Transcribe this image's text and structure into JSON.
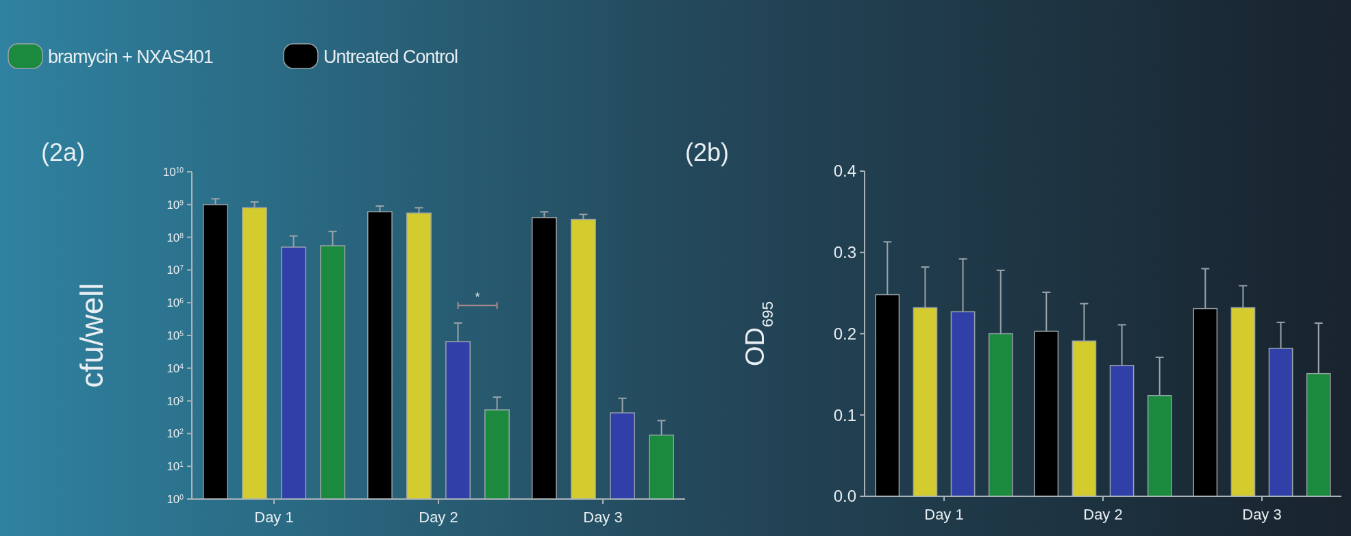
{
  "chart_data": [
    {
      "type": "bar",
      "ylabel": "cfu/well",
      "categories": [
        "Day 1",
        "Day 2",
        "Day 3"
      ],
      "log": true,
      "legend": "top",
      "ylim": [
        1,
        10000000000
      ],
      "yticks": [
        {
          "value": 1,
          "label": "10$^{0}$"
        },
        {
          "value": 10,
          "label": "10$^{1}$"
        },
        {
          "value": 100,
          "label": "10$^{2}$"
        },
        {
          "value": 1000,
          "label": "10$^{3}$"
        },
        {
          "value": 10000,
          "label": "10$^{4}$"
        },
        {
          "value": 100000,
          "label": "10$^{5}$"
        },
        {
          "value": 1000000,
          "label": "10$^{6}$"
        },
        {
          "value": 10000000,
          "label": "10$^{7}$"
        },
        {
          "value": 100000000,
          "label": "10$^{8}$"
        },
        {
          "value": 1000000000,
          "label": "10$^{9}$"
        },
        {
          "value": 10000000000,
          "label": "10$^{10}$"
        }
      ],
      "series": [
        {
          "name": "Untreated Control",
          "color": "#000000",
          "values": [
            1000000000,
            600000000,
            400000000
          ],
          "errors": [
            [
              1000000000,
              1500000000
            ],
            [
              600000000,
              900000000
            ],
            [
              400000000,
              600000000
            ]
          ]
        },
        {
          "color": "#d4cc2e",
          "values": [
            800000000,
            550000000,
            350000000
          ],
          "errors": [
            [
              800000000,
              1200000000
            ],
            [
              550000000,
              800000000
            ],
            [
              350000000,
              500000000
            ]
          ]
        },
        {
          "color": "#3040a8",
          "values": [
            50000000,
            65000,
            430
          ],
          "errors": [
            [
              50000000,
              110000000
            ],
            [
              65000,
              240000
            ],
            [
              430,
              1200
            ]
          ]
        },
        {
          "name": "bramycin + NXAS401",
          "color": "#1b8a3e",
          "values": [
            55000000,
            530,
            90
          ],
          "errors": [
            [
              55000000,
              150000000
            ],
            [
              530,
              1300
            ],
            [
              90,
              250
            ]
          ]
        }
      ],
      "annotations": [
        "(2a)",
        "*"
      ]
    },
    {
      "type": "bar",
      "ylabel": "OD$_{695}$",
      "categories": [
        "Day 1",
        "Day 2",
        "Day 3"
      ],
      "ylim": [
        0,
        0.4
      ],
      "yticks": [
        {
          "value": 0,
          "label": "0.0"
        },
        0.1,
        0.2,
        0.3,
        0.4
      ],
      "series": [
        {
          "color": "#000000",
          "values": [
            0.248,
            0.203,
            0.231
          ],
          "errors": [
            [
              0.248,
              0.313
            ],
            [
              0.203,
              0.251
            ],
            [
              0.231,
              0.28
            ]
          ]
        },
        {
          "color": "#d4cc2e",
          "values": [
            0.232,
            0.191,
            0.232
          ],
          "errors": [
            [
              0.232,
              0.282
            ],
            [
              0.191,
              0.237
            ],
            [
              0.232,
              0.259
            ]
          ]
        },
        {
          "color": "#3040a8",
          "values": [
            0.227,
            0.161,
            0.182
          ],
          "errors": [
            [
              0.227,
              0.292
            ],
            [
              0.161,
              0.211
            ],
            [
              0.182,
              0.214
            ]
          ]
        },
        {
          "color": "#1b8a3e",
          "values": [
            0.2,
            0.124,
            0.151
          ],
          "errors": [
            [
              0.2,
              0.278
            ],
            [
              0.124,
              0.171
            ],
            [
              0.151,
              0.213
            ]
          ]
        }
      ],
      "annotations": [
        "(2b)"
      ]
    }
  ]
}
